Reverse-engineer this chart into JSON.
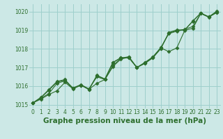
{
  "title": "Graphe pression niveau de la mer (hPa)",
  "bg_color": "#cce8e6",
  "grid_color": "#9ecfcc",
  "line_color": "#2d6e2d",
  "xlim_min": -0.5,
  "xlim_max": 23.5,
  "ylim": [
    1014.8,
    1020.4
  ],
  "yticks": [
    1015,
    1016,
    1017,
    1018,
    1019,
    1020
  ],
  "xticks": [
    0,
    1,
    2,
    3,
    4,
    5,
    6,
    7,
    8,
    9,
    10,
    11,
    12,
    13,
    14,
    15,
    16,
    17,
    18,
    19,
    20,
    21,
    22,
    23
  ],
  "series": [
    [
      1015.1,
      1015.3,
      1015.55,
      1015.75,
      1016.2,
      1015.85,
      1016.05,
      1015.83,
      1016.15,
      1016.35,
      1017.05,
      1017.45,
      1017.55,
      1017.0,
      1017.25,
      1017.55,
      1018.05,
      1017.85,
      1018.05,
      1019.0,
      1019.1,
      1019.9,
      1019.7,
      1019.95
    ],
    [
      1015.1,
      1015.35,
      1015.6,
      1016.15,
      1016.28,
      1015.9,
      1016.08,
      1015.85,
      1016.5,
      1016.35,
      1017.1,
      1017.5,
      1017.58,
      1017.0,
      1017.27,
      1017.57,
      1018.07,
      1018.82,
      1018.95,
      1019.05,
      1019.2,
      1019.9,
      1019.72,
      1019.97
    ],
    [
      1015.1,
      1015.38,
      1015.78,
      1016.22,
      1016.32,
      1015.88,
      1016.05,
      1015.82,
      1016.58,
      1016.38,
      1017.25,
      1017.52,
      1017.52,
      1017.0,
      1017.22,
      1017.52,
      1018.02,
      1018.85,
      1018.98,
      1019.02,
      1019.48,
      1019.92,
      1019.72,
      1020.0
    ],
    [
      1015.1,
      1015.4,
      1015.82,
      1016.25,
      1016.35,
      1015.88,
      1016.05,
      1015.82,
      1016.55,
      1016.38,
      1017.28,
      1017.52,
      1017.52,
      1017.0,
      1017.22,
      1017.52,
      1018.02,
      1018.88,
      1019.02,
      1019.02,
      1019.5,
      1019.92,
      1019.72,
      1020.02
    ]
  ],
  "marker": "D",
  "markersize": 2.5,
  "linewidth": 0.8,
  "title_fontsize": 7.5,
  "tick_fontsize": 5.5
}
